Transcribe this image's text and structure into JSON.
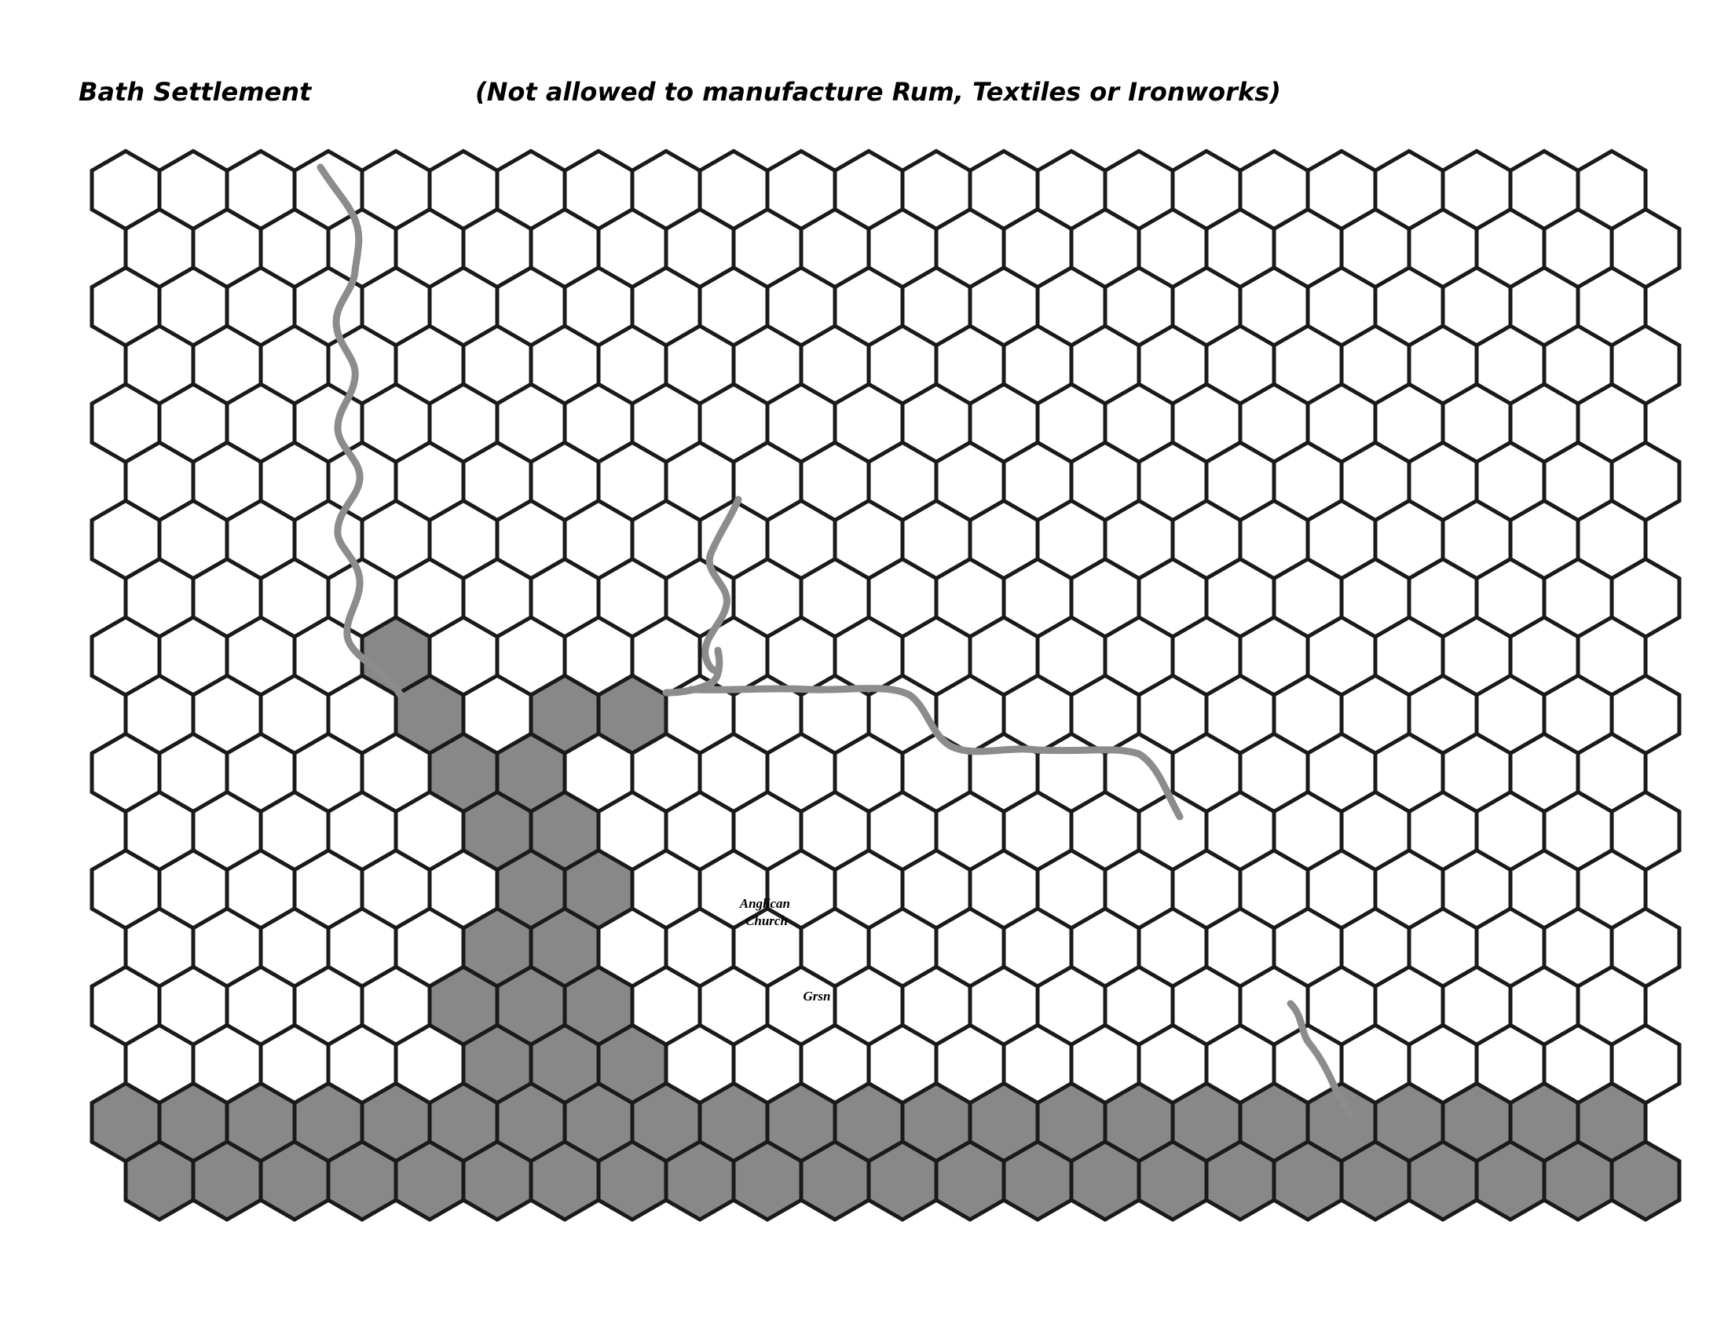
{
  "header": {
    "title": "Bath Settlement",
    "note": "(Not allowed to manufacture Rum, Textiles or Ironworks)"
  },
  "map": {
    "columns": 23,
    "rows": 18,
    "colors": {
      "hex_empty": "#ffffff",
      "hex_shaded": "#888888",
      "hex_outline": "#1a1a1a",
      "river": "#8c8c8c"
    },
    "shaded_hexes": [
      [
        8,
        4
      ],
      [
        9,
        4
      ],
      [
        9,
        6
      ],
      [
        9,
        7
      ],
      [
        10,
        5
      ],
      [
        10,
        6
      ],
      [
        11,
        5
      ],
      [
        11,
        6
      ],
      [
        12,
        6
      ],
      [
        12,
        7
      ],
      [
        13,
        5
      ],
      [
        13,
        6
      ],
      [
        14,
        5
      ],
      [
        14,
        6
      ],
      [
        14,
        7
      ],
      [
        15,
        5
      ],
      [
        15,
        6
      ],
      [
        15,
        7
      ],
      [
        16,
        0
      ],
      [
        16,
        1
      ],
      [
        16,
        2
      ],
      [
        16,
        3
      ],
      [
        16,
        4
      ],
      [
        16,
        5
      ],
      [
        16,
        6
      ],
      [
        16,
        7
      ],
      [
        16,
        8
      ],
      [
        16,
        9
      ],
      [
        16,
        10
      ],
      [
        16,
        11
      ],
      [
        16,
        12
      ],
      [
        16,
        13
      ],
      [
        16,
        14
      ],
      [
        16,
        15
      ],
      [
        16,
        16
      ],
      [
        16,
        17
      ],
      [
        16,
        18
      ],
      [
        16,
        19
      ],
      [
        16,
        20
      ],
      [
        16,
        21
      ],
      [
        16,
        22
      ],
      [
        17,
        0
      ],
      [
        17,
        1
      ],
      [
        17,
        2
      ],
      [
        17,
        3
      ],
      [
        17,
        4
      ],
      [
        17,
        5
      ],
      [
        17,
        6
      ],
      [
        17,
        7
      ],
      [
        17,
        8
      ],
      [
        17,
        9
      ],
      [
        17,
        10
      ],
      [
        17,
        11
      ],
      [
        17,
        12
      ],
      [
        17,
        13
      ],
      [
        17,
        14
      ],
      [
        17,
        15
      ],
      [
        17,
        16
      ],
      [
        17,
        17
      ],
      [
        17,
        18
      ],
      [
        17,
        19
      ],
      [
        17,
        20
      ],
      [
        17,
        21
      ],
      [
        17,
        22
      ]
    ],
    "labels": [
      {
        "id": "anglican-church",
        "lines": [
          "Anglican",
          "Church"
        ]
      },
      {
        "id": "garrison",
        "lines": [
          "Grsn"
        ]
      }
    ],
    "rivers": [
      "river-west",
      "river-central",
      "river-southeast"
    ]
  }
}
